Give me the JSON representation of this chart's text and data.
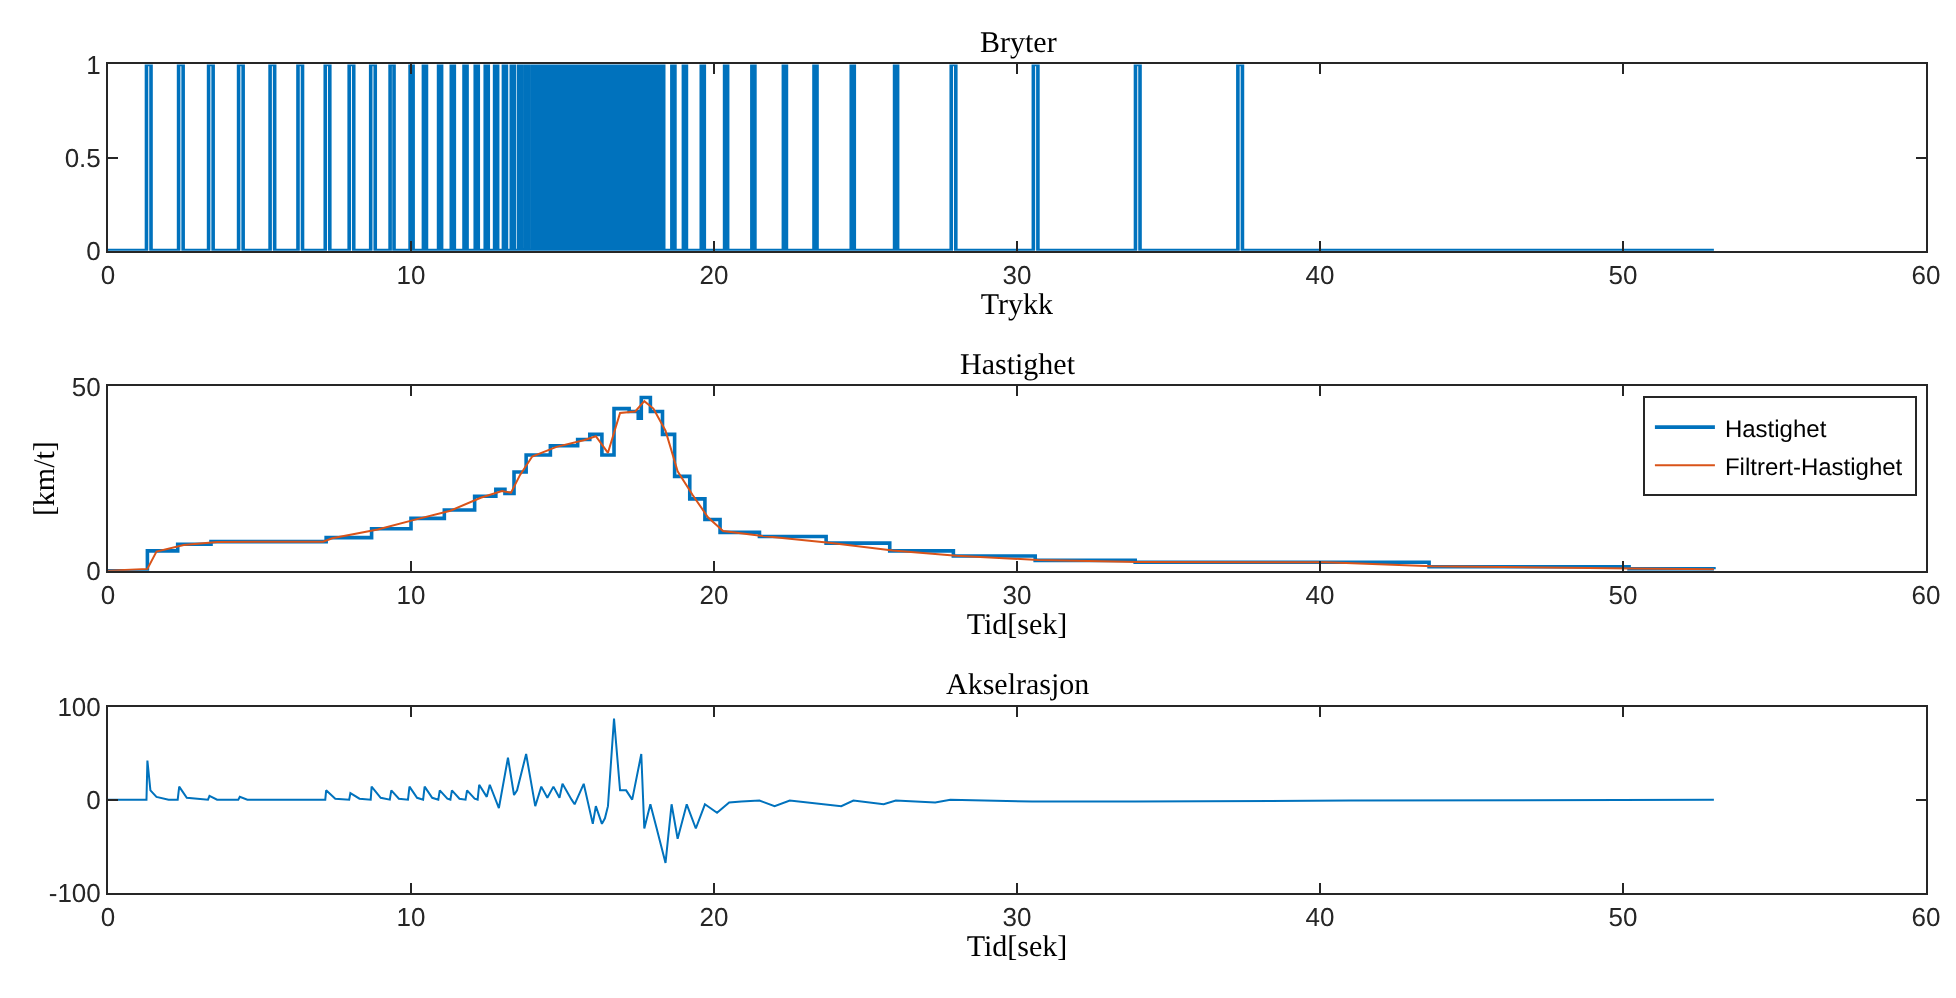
{
  "chart_data": [
    {
      "type": "step",
      "title": "Bryter",
      "xlabel": "Trykk",
      "xlim": [
        0,
        60
      ],
      "xticks": [
        0,
        10,
        20,
        30,
        40,
        50,
        60
      ],
      "ylim": [
        0,
        1
      ],
      "yticks": [
        0,
        0.5,
        1
      ],
      "series": [
        {
          "color": "#0072bd",
          "x": [
            0,
            1.27,
            1.42,
            2.33,
            2.48,
            3.32,
            3.47,
            4.31,
            4.46,
            5.35,
            5.5,
            6.27,
            6.42,
            7.17,
            7.32,
            7.96,
            8.11,
            8.67,
            8.82,
            9.31,
            9.44,
            9.97,
            10.07,
            10.41,
            10.51,
            10.91,
            11.01,
            11.33,
            11.43,
            11.75,
            11.85,
            12.12,
            12.22,
            12.45,
            12.55,
            12.76,
            12.86,
            13.05,
            13.15,
            13.31,
            13.41,
            13.55,
            13.65,
            13.77,
            13.87,
            13.99,
            14.09,
            14.19,
            14.29,
            14.39,
            14.49,
            14.59,
            14.69,
            14.79,
            14.89,
            14.98,
            15.08,
            15.18,
            15.28,
            15.36,
            15.46,
            15.53,
            15.63,
            15.71,
            15.81,
            15.89,
            15.99,
            16.06,
            16.16,
            16.24,
            16.34,
            16.39,
            16.49,
            16.55,
            16.65,
            16.7,
            16.8,
            16.85,
            16.95,
            17.01,
            17.11,
            17.16,
            17.26,
            17.32,
            17.42,
            17.47,
            17.57,
            17.62,
            17.72,
            17.78,
            17.88,
            17.93,
            18.03,
            18.09,
            18.19,
            18.24,
            18.34,
            18.61,
            18.71,
            18.99,
            19.09,
            19.58,
            19.68,
            20.35,
            20.45,
            21.25,
            21.35,
            22.29,
            22.39,
            23.3,
            23.4,
            24.53,
            24.63,
            25.96,
            26.06,
            27.83,
            27.98,
            30.54,
            30.69,
            33.91,
            34.06,
            37.29,
            37.44,
            53
          ],
          "values": [
            0,
            1,
            0,
            1,
            0,
            1,
            0,
            1,
            0,
            1,
            0,
            1,
            0,
            1,
            0,
            1,
            0,
            1,
            0,
            1,
            0,
            1,
            0,
            1,
            0,
            1,
            0,
            1,
            0,
            1,
            0,
            1,
            0,
            1,
            0,
            1,
            0,
            1,
            0,
            1,
            0,
            1,
            0,
            1,
            0,
            1,
            0,
            1,
            0,
            1,
            0,
            1,
            0,
            1,
            0,
            1,
            0,
            1,
            0,
            1,
            0,
            1,
            0,
            1,
            0,
            1,
            0,
            1,
            0,
            1,
            0,
            1,
            0,
            1,
            0,
            1,
            0,
            1,
            0,
            1,
            0,
            1,
            0,
            1,
            0,
            1,
            0,
            1,
            0,
            1,
            0,
            1,
            0,
            1,
            0,
            1,
            0,
            1,
            0,
            1,
            0,
            1,
            0,
            1,
            0,
            1,
            0,
            1,
            0,
            1,
            0,
            1,
            0,
            1,
            0,
            1,
            0,
            1,
            0,
            1,
            0,
            1,
            0,
            0
          ]
        }
      ]
    },
    {
      "type": "line",
      "title": "Hastighet",
      "xlabel": "Tid[sek]",
      "ylabel": "[km/t]",
      "xlim": [
        0,
        60
      ],
      "xticks": [
        0,
        10,
        20,
        30,
        40,
        50,
        60
      ],
      "ylim": [
        0,
        50
      ],
      "yticks": [
        0,
        50
      ],
      "legend": "top right",
      "series": [
        {
          "name": "Hastighet",
          "type": "step",
          "color": "#0072bd",
          "x": [
            0,
            1.3,
            2.3,
            3.4,
            7.1,
            7.2,
            8.7,
            10.0,
            11.1,
            12.1,
            12.8,
            13.1,
            13.4,
            13.8,
            14.6,
            15.5,
            15.9,
            16.3,
            16.7,
            17.2,
            17.5,
            17.6,
            17.9,
            18.3,
            18.7,
            19.2,
            19.7,
            20.2,
            21.5,
            23.7,
            25.8,
            27.9,
            30.6,
            33.9,
            40.1,
            43.6,
            50.2,
            53
          ],
          "values": [
            0,
            5.4,
            7.2,
            7.9,
            7.9,
            9,
            11.4,
            14.2,
            16.5,
            20.2,
            22.1,
            21,
            26.8,
            31.4,
            33.9,
            35.6,
            37,
            31.4,
            44,
            43.2,
            41.4,
            47,
            43.2,
            37,
            25.6,
            19.5,
            13.9,
            10.4,
            9.3,
            7.5,
            5.4,
            4.0,
            2.8,
            2.3,
            2.3,
            1.1,
            0.5,
            0.4
          ]
        },
        {
          "name": "Filtrert-Hastighet",
          "type": "line",
          "color": "#d95319",
          "x": [
            0,
            1.3,
            1.6,
            2.5,
            3.6,
            7.1,
            7.4,
            8.9,
            10.2,
            11.3,
            12.3,
            13.0,
            13.3,
            13.6,
            14.0,
            14.8,
            15.7,
            16.1,
            16.5,
            16.9,
            17.4,
            17.7,
            18.0,
            18.4,
            18.8,
            19.3,
            19.8,
            20.3,
            21.6,
            23.8,
            25.9,
            28.0,
            30.7,
            34.0,
            40.2,
            43.7,
            50.3,
            53
          ],
          "values": [
            0,
            0.5,
            5.2,
            7.0,
            7.8,
            7.9,
            8.8,
            11.2,
            14.0,
            16.3,
            19.8,
            21.6,
            21.2,
            26,
            31,
            33.6,
            35.4,
            36.5,
            32,
            42.8,
            43.2,
            46,
            44,
            38,
            27,
            20.5,
            14.5,
            10.8,
            9.4,
            7.6,
            5.5,
            4.1,
            2.9,
            2.4,
            2.3,
            1.2,
            0.6,
            0.4
          ]
        }
      ]
    },
    {
      "type": "line",
      "title": "Akselrasjon",
      "xlabel": "Tid[sek]",
      "xlim": [
        0,
        60
      ],
      "xticks": [
        0,
        10,
        20,
        30,
        40,
        50,
        60
      ],
      "ylim": [
        -100,
        100
      ],
      "yticks": [
        -100,
        0,
        100
      ],
      "series": [
        {
          "color": "#0072bd",
          "x": [
            0,
            1.27,
            1.3,
            1.4,
            1.6,
            2.0,
            2.3,
            2.35,
            2.6,
            3.3,
            3.35,
            3.6,
            4.3,
            4.35,
            4.6,
            7.17,
            7.2,
            7.5,
            7.96,
            8.0,
            8.3,
            8.67,
            8.7,
            9.0,
            9.3,
            9.35,
            9.6,
            9.9,
            9.95,
            10.2,
            10.4,
            10.45,
            10.7,
            10.9,
            10.95,
            11.2,
            11.3,
            11.35,
            11.6,
            11.8,
            11.85,
            12.1,
            12.2,
            12.25,
            12.5,
            12.6,
            12.9,
            13.2,
            13.4,
            13.5,
            13.8,
            14.1,
            14.3,
            14.5,
            14.7,
            14.9,
            15.0,
            15.3,
            15.4,
            15.7,
            16.0,
            16.1,
            16.3,
            16.4,
            16.5,
            16.7,
            16.9,
            17.1,
            17.3,
            17.6,
            17.7,
            17.9,
            18.1,
            18.4,
            18.6,
            18.8,
            19.1,
            19.4,
            19.7,
            20.1,
            20.5,
            20.9,
            21.5,
            22.0,
            22.5,
            24.2,
            24.6,
            25.6,
            26.0,
            27.3,
            27.8,
            30.5,
            33.9,
            41.0,
            53
          ],
          "values": [
            0,
            0,
            42,
            10,
            3,
            0,
            0,
            14,
            2,
            0,
            4,
            0,
            0,
            3,
            0,
            0,
            10,
            1,
            0,
            7,
            1,
            0,
            14,
            2,
            0,
            10,
            1,
            0,
            14,
            2,
            0,
            14,
            2,
            0,
            10,
            1,
            0,
            10,
            1,
            0,
            10,
            1,
            0,
            16,
            3,
            16,
            -9,
            45,
            5,
            10,
            49,
            -7,
            14,
            2,
            14,
            2,
            17,
            0,
            -5,
            17,
            -26,
            -7,
            -26,
            -20,
            -7,
            87,
            10,
            10,
            0,
            49,
            -31,
            -5,
            -30,
            -68,
            -5,
            -42,
            -5,
            -31,
            -5,
            -14,
            -3,
            -2,
            -1,
            -7,
            -1,
            -7,
            -1,
            -5,
            -1,
            -3,
            0,
            -2,
            -2,
            -1,
            0
          ]
        }
      ]
    }
  ]
}
